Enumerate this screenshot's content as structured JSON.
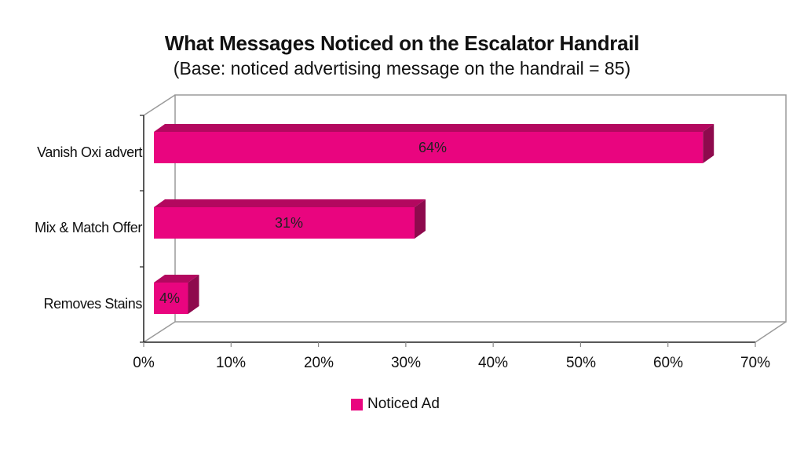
{
  "chart_data": {
    "type": "bar",
    "orientation": "horizontal",
    "style": "3d",
    "title": "What Messages Noticed on the Escalator Handrail",
    "subtitle": "(Base: noticed advertising message on the handrail = 85)",
    "categories": [
      "Vanish Oxi advert",
      "Mix & Match Offer",
      "Removes Stains"
    ],
    "series": [
      {
        "name": "Noticed Ad",
        "values": [
          64,
          31,
          4
        ],
        "color": "#e9057f"
      }
    ],
    "data_labels": [
      "64%",
      "31%",
      "4%"
    ],
    "xlabel": "",
    "ylabel": "",
    "xlim": [
      0,
      70
    ],
    "x_ticks": [
      "0%",
      "10%",
      "20%",
      "30%",
      "40%",
      "50%",
      "60%",
      "70%"
    ],
    "grid": false,
    "legend_position": "bottom"
  },
  "legend": {
    "label": "Noticed Ad"
  }
}
